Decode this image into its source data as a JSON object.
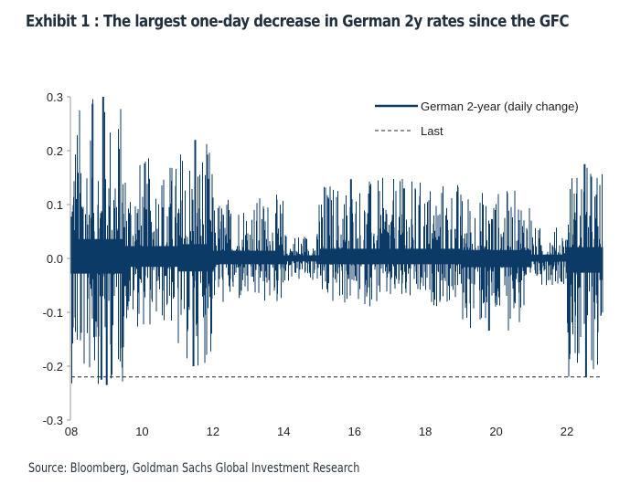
{
  "title": "Exhibit 1 : The largest one-day decrease in German 2y rates since the GFC",
  "source": "Source: Bloomberg, Goldman Sachs Global Investment Research",
  "colors": {
    "series": "#0b3a66",
    "axis": "#9a9a9a",
    "last_line": "#1e2a36"
  },
  "chart_data": {
    "type": "bar",
    "title": "Exhibit 1 : The largest one-day decrease in German 2y rates since the GFC",
    "xlabel": "",
    "ylabel": "",
    "ylim": [
      -0.3,
      0.3
    ],
    "xlim": [
      2008,
      2022.55
    ],
    "grid": false,
    "legend_position": "top-right",
    "y_ticks": [
      "0.3",
      "0.2",
      "0.1",
      "0.0",
      "-0.1",
      "-0.2",
      "-0.3"
    ],
    "y_tick_values": [
      0.3,
      0.2,
      0.1,
      0.0,
      -0.1,
      -0.2,
      -0.3
    ],
    "x_ticks": [
      "08",
      "10",
      "12",
      "14",
      "16",
      "18",
      "20",
      "22"
    ],
    "x_tick_values": [
      2008,
      2010,
      2012,
      2014,
      2016,
      2018,
      2020,
      2022
    ],
    "series": [
      {
        "name": "German 2-year (daily change)",
        "style": "solid",
        "envelope_by_period": [
          {
            "start": 2008.0,
            "end": 2009.5,
            "max": 0.3,
            "min": -0.235
          },
          {
            "start": 2009.5,
            "end": 2011.0,
            "max": 0.19,
            "min": -0.13
          },
          {
            "start": 2011.0,
            "end": 2012.0,
            "max": 0.22,
            "min": -0.2
          },
          {
            "start": 2012.0,
            "end": 2014.0,
            "max": 0.12,
            "min": -0.09
          },
          {
            "start": 2014.0,
            "end": 2015.0,
            "max": 0.05,
            "min": -0.045
          },
          {
            "start": 2015.0,
            "end": 2019.0,
            "max": 0.15,
            "min": -0.09
          },
          {
            "start": 2019.0,
            "end": 2021.0,
            "max": 0.13,
            "min": -0.135
          },
          {
            "start": 2021.0,
            "end": 2022.0,
            "max": 0.06,
            "min": -0.05
          },
          {
            "start": 2022.0,
            "end": 2022.55,
            "max": 0.175,
            "min": -0.22
          }
        ],
        "notable_points": [
          {
            "x": 2008.9,
            "y": 0.3
          },
          {
            "x": 2008.6,
            "y": 0.287
          },
          {
            "x": 2009.0,
            "y": -0.235
          },
          {
            "x": 2008.85,
            "y": -0.225
          },
          {
            "x": 2011.5,
            "y": 0.22
          },
          {
            "x": 2011.45,
            "y": -0.2
          },
          {
            "x": 2015.9,
            "y": 0.147
          },
          {
            "x": 2017.4,
            "y": 0.13
          },
          {
            "x": 2019.8,
            "y": -0.134
          },
          {
            "x": 2022.5,
            "y": 0.175
          },
          {
            "x": 2022.54,
            "y": -0.22
          }
        ]
      },
      {
        "name": "Last",
        "style": "dashed",
        "value": -0.22
      }
    ]
  }
}
